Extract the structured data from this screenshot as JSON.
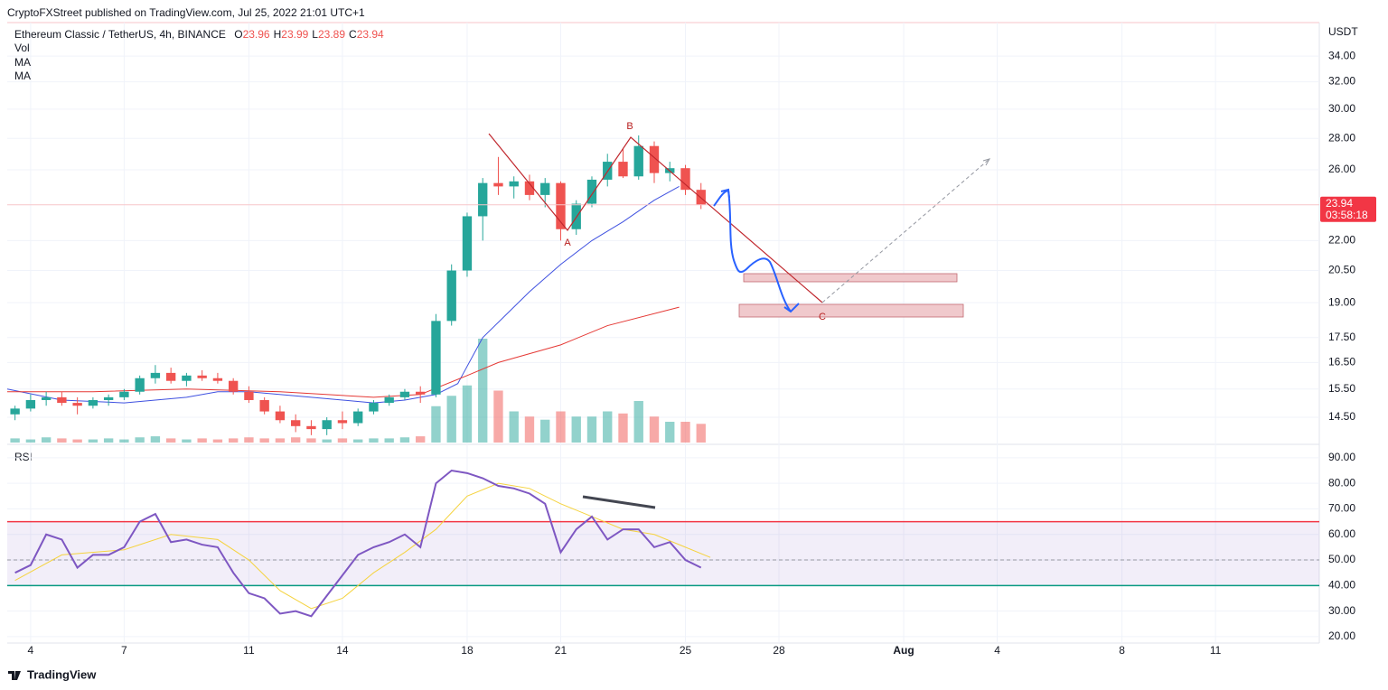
{
  "header": "CryptoFXStreet published on TradingView.com, Jul 25, 2022 21:01 UTC+1",
  "footer": "TradingView",
  "chart_data": [
    {
      "type": "candlestick",
      "title": "Ethereum Classic / TetherUS, 4h, BINANCE",
      "legend_ohlc": [
        {
          "label": "O",
          "value": 23.96
        },
        {
          "label": "H",
          "value": 23.99
        },
        {
          "label": "L",
          "value": 23.89
        },
        {
          "label": "C",
          "value": 23.94
        }
      ],
      "indicators": [
        "Vol",
        "MA",
        "MA"
      ],
      "y_axis_label": "USDT",
      "log_scale": true,
      "ylim": [
        13.66,
        36.8
      ],
      "yticks": [
        {
          "value": 34,
          "label": "34.00"
        },
        {
          "value": 32,
          "label": "32.00"
        },
        {
          "value": 30,
          "label": "30.00"
        },
        {
          "value": 28,
          "label": "28.00"
        },
        {
          "value": 26,
          "label": "26.00"
        },
        {
          "value": 22,
          "label": "22.00"
        },
        {
          "value": 20.5,
          "label": "20.50"
        },
        {
          "value": 19,
          "label": "19.00"
        },
        {
          "value": 17.5,
          "label": "17.50"
        },
        {
          "value": 16.5,
          "label": "16.50"
        },
        {
          "value": 15.5,
          "label": "15.50"
        },
        {
          "value": 14.5,
          "label": "14.50"
        }
      ],
      "xlim": [
        3.25,
        45.33
      ],
      "xticks": [
        4,
        7,
        11,
        14,
        18,
        21,
        25,
        28,
        {
          "value": 32,
          "label": "Aug"
        },
        {
          "value": 35,
          "label": "4"
        },
        {
          "value": 39,
          "label": "8"
        },
        {
          "value": 42,
          "label": "11"
        }
      ],
      "up_color": "#26a69a",
      "down_color": "#ef5350",
      "x": [
        3.5,
        4,
        4.5,
        5,
        5.5,
        6,
        6.5,
        7,
        7.5,
        8,
        8.5,
        9,
        9.5,
        10,
        10.5,
        11,
        11.5,
        12,
        12.5,
        13,
        13.5,
        14,
        14.5,
        15,
        15.5,
        16,
        16.5,
        17,
        17.5,
        18,
        18.5,
        19,
        19.5,
        20,
        20.5,
        21,
        21.5,
        22,
        22.5,
        23,
        23.5,
        24,
        24.5,
        25,
        25.5
      ],
      "open": [
        14.6,
        14.8,
        15.1,
        15.2,
        15.0,
        14.9,
        15.1,
        15.2,
        15.4,
        15.9,
        16.1,
        15.8,
        16.0,
        15.9,
        15.8,
        15.4,
        15.1,
        14.7,
        14.4,
        14.2,
        14.1,
        14.4,
        14.3,
        14.7,
        15.0,
        15.2,
        15.4,
        15.3,
        18.2,
        20.5,
        23.3,
        25.2,
        25.0,
        25.3,
        24.5,
        25.2,
        22.6,
        24.0,
        25.4,
        26.5,
        25.6,
        27.5,
        25.8,
        26.1,
        24.8
      ],
      "high": [
        14.9,
        15.3,
        15.4,
        15.4,
        15.2,
        15.2,
        15.3,
        15.5,
        16.0,
        16.4,
        16.3,
        16.1,
        16.2,
        16.1,
        15.9,
        15.6,
        15.2,
        14.9,
        14.6,
        14.4,
        14.5,
        14.7,
        14.8,
        15.1,
        15.3,
        15.5,
        15.6,
        18.5,
        20.8,
        23.5,
        25.5,
        26.8,
        25.6,
        25.7,
        25.5,
        25.3,
        24.2,
        25.6,
        27.0,
        27.3,
        28.2,
        27.8,
        26.5,
        26.3,
        25.2
      ],
      "low": [
        14.4,
        14.7,
        14.9,
        14.9,
        14.6,
        14.8,
        14.9,
        15.1,
        15.3,
        15.7,
        15.7,
        15.6,
        15.8,
        15.7,
        15.3,
        15.0,
        14.6,
        14.3,
        14.0,
        13.9,
        13.9,
        14.1,
        14.2,
        14.6,
        14.9,
        15.1,
        15.0,
        15.2,
        18.0,
        20.2,
        22.0,
        24.5,
        24.3,
        24.2,
        23.8,
        22.0,
        22.3,
        23.8,
        25.0,
        25.5,
        25.4,
        25.2,
        25.3,
        24.5,
        23.7
      ],
      "close": [
        14.8,
        15.1,
        15.2,
        15.0,
        14.9,
        15.1,
        15.2,
        15.4,
        15.9,
        16.1,
        15.8,
        16.0,
        15.9,
        15.8,
        15.4,
        15.1,
        14.7,
        14.4,
        14.2,
        14.1,
        14.4,
        14.3,
        14.7,
        15.0,
        15.2,
        15.4,
        15.3,
        18.2,
        20.5,
        23.3,
        25.2,
        25.0,
        25.3,
        24.5,
        25.2,
        22.6,
        24.0,
        25.4,
        26.5,
        25.6,
        27.5,
        25.8,
        26.1,
        24.8,
        23.94
      ],
      "volume": [
        4,
        3,
        5,
        4,
        3,
        3,
        4,
        3,
        5,
        6,
        4,
        3,
        4,
        3,
        4,
        5,
        4,
        4,
        5,
        4,
        3,
        4,
        3,
        4,
        4,
        5,
        6,
        35,
        45,
        55,
        100,
        50,
        30,
        25,
        22,
        30,
        25,
        25,
        30,
        28,
        40,
        25,
        20,
        20,
        18
      ],
      "ma_series": [
        {
          "color": "#3f51e0",
          "x": [
            3.25,
            5,
            7,
            9,
            10,
            11,
            13,
            15,
            16,
            17,
            17.7,
            18.5,
            20,
            21,
            22,
            23,
            24,
            24.8
          ],
          "values": [
            15.5,
            15.1,
            15.0,
            15.2,
            15.4,
            15.4,
            15.2,
            15.0,
            15.1,
            15.3,
            15.7,
            17.5,
            19.5,
            20.8,
            22.0,
            23.0,
            24.2,
            25.0
          ]
        },
        {
          "color": "#e53935",
          "x": [
            3.25,
            6,
            9,
            12,
            15,
            16.5,
            18,
            19,
            21,
            22.5,
            24.8
          ],
          "values": [
            15.4,
            15.4,
            15.5,
            15.4,
            15.2,
            15.3,
            16.0,
            16.5,
            17.2,
            18.0,
            18.8
          ]
        }
      ],
      "countdown": "03:58:18",
      "annotations": [
        "A",
        "B",
        "C"
      ]
    },
    {
      "type": "line",
      "title": "RSI",
      "ylim": [
        17.5,
        94.9
      ],
      "yticks": [
        {
          "value": 90,
          "label": "90.00"
        },
        {
          "value": 80,
          "label": "80.00"
        },
        {
          "value": 70,
          "label": "70.00"
        },
        {
          "value": 60,
          "label": "60.00"
        },
        {
          "value": 50,
          "label": "50.00"
        },
        {
          "value": 40,
          "label": "40.00"
        },
        {
          "value": 30,
          "label": "30.00"
        },
        {
          "value": 20,
          "label": "20.00"
        }
      ],
      "levels": [
        {
          "value": 65,
          "color": "#f23645"
        },
        {
          "value": 50,
          "color": "#9598a1"
        },
        {
          "value": 40,
          "color": "#089981"
        }
      ],
      "band_color": "#7e57c2",
      "series": [
        {
          "color": "#7e57c2",
          "x": [
            3.5,
            4,
            4.5,
            5,
            5.5,
            6,
            6.5,
            7,
            7.5,
            8,
            8.5,
            9,
            9.5,
            10,
            10.5,
            11,
            11.5,
            12,
            12.5,
            13,
            13.5,
            14,
            14.5,
            15,
            15.5,
            16,
            16.5,
            17,
            17.5,
            18,
            18.5,
            19,
            19.5,
            20,
            20.5,
            21,
            21.5,
            22,
            22.5,
            23,
            23.5,
            24,
            24.5,
            25,
            25.5
          ],
          "values": [
            45,
            48,
            60,
            58,
            47,
            52,
            52,
            55,
            65,
            68,
            57,
            58,
            56,
            55,
            45,
            37,
            35,
            29,
            30,
            28,
            36,
            44,
            52,
            55,
            57,
            60,
            55,
            80,
            85,
            84,
            82,
            79,
            78,
            76,
            72,
            53,
            62,
            67,
            58,
            62,
            62,
            55,
            57,
            50,
            47
          ]
        },
        {
          "color": "#f5d33f",
          "x": [
            3.5,
            5,
            7,
            8.5,
            10,
            11,
            12,
            13,
            14,
            15,
            16,
            17,
            18,
            19,
            20,
            21,
            22,
            23,
            24,
            25,
            25.8
          ],
          "values": [
            42,
            52,
            54,
            60,
            58,
            50,
            38,
            31,
            35,
            45,
            53,
            62,
            75,
            80,
            78,
            72,
            67,
            62,
            60,
            55,
            51
          ]
        }
      ]
    }
  ]
}
